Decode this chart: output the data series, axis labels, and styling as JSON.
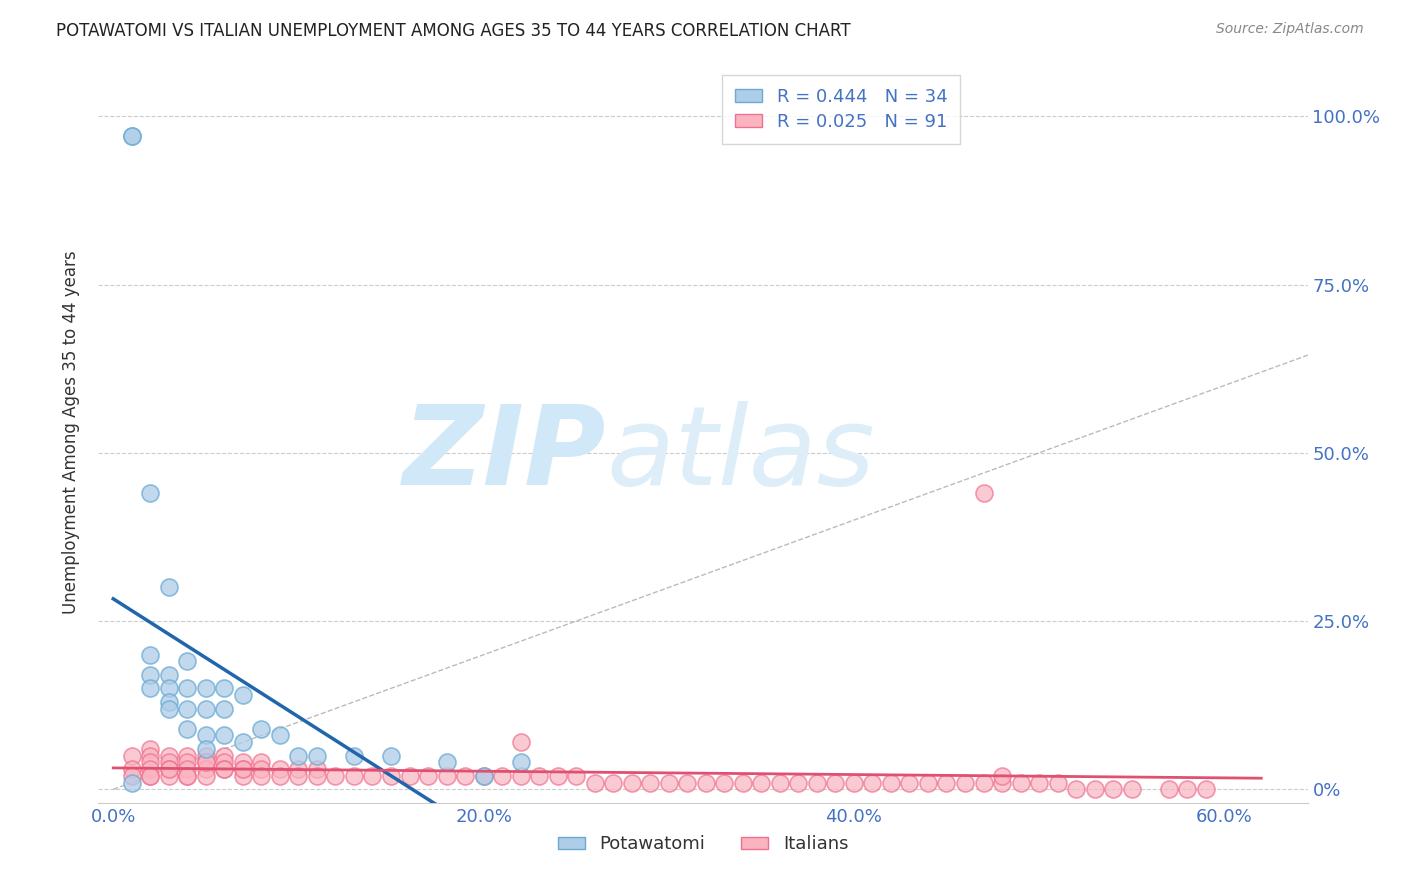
{
  "title": "POTAWATOMI VS ITALIAN UNEMPLOYMENT AMONG AGES 35 TO 44 YEARS CORRELATION CHART",
  "source": "Source: ZipAtlas.com",
  "xlabel_ticks": [
    "0.0%",
    "20.0%",
    "40.0%",
    "60.0%"
  ],
  "xlabel_tick_vals": [
    0.0,
    0.2,
    0.4,
    0.6
  ],
  "ylabel_ticks": [
    "100.0%",
    "75.0%",
    "50.0%",
    "25.0%",
    "0%"
  ],
  "ylabel_tick_vals": [
    1.0,
    0.75,
    0.5,
    0.25,
    0.0
  ],
  "ylabel_label": "Unemployment Among Ages 35 to 44 years",
  "xlim": [
    -0.008,
    0.645
  ],
  "ylim": [
    -0.02,
    1.08
  ],
  "potawatomi_R": 0.444,
  "potawatomi_N": 34,
  "italian_R": 0.025,
  "italian_N": 91,
  "potawatomi_color": "#aecde8",
  "italian_color": "#f9b4c0",
  "potawatomi_edge_color": "#6aaad4",
  "italian_edge_color": "#f07090",
  "potawatomi_line_color": "#2166ac",
  "italian_line_color": "#e05070",
  "ref_line_color": "#bbbbbb",
  "watermark_zip": "ZIP",
  "watermark_atlas": "atlas",
  "watermark_color": "#d0e8f8",
  "background_color": "#ffffff",
  "grid_color": "#cccccc",
  "title_color": "#222222",
  "axis_tick_color": "#4472c4",
  "ylabel_text_color": "#333333",
  "potawatomi_x": [
    0.01,
    0.01,
    0.02,
    0.02,
    0.02,
    0.02,
    0.03,
    0.03,
    0.03,
    0.03,
    0.03,
    0.04,
    0.04,
    0.04,
    0.04,
    0.05,
    0.05,
    0.05,
    0.05,
    0.06,
    0.06,
    0.06,
    0.07,
    0.07,
    0.08,
    0.09,
    0.1,
    0.11,
    0.13,
    0.15,
    0.18,
    0.2,
    0.22,
    0.01
  ],
  "potawatomi_y": [
    0.97,
    0.97,
    0.44,
    0.2,
    0.17,
    0.15,
    0.3,
    0.17,
    0.15,
    0.13,
    0.12,
    0.19,
    0.15,
    0.12,
    0.09,
    0.15,
    0.12,
    0.08,
    0.06,
    0.15,
    0.12,
    0.08,
    0.14,
    0.07,
    0.09,
    0.08,
    0.05,
    0.05,
    0.05,
    0.05,
    0.04,
    0.02,
    0.04,
    0.01
  ],
  "italian_x": [
    0.01,
    0.01,
    0.01,
    0.02,
    0.02,
    0.02,
    0.02,
    0.02,
    0.03,
    0.03,
    0.03,
    0.03,
    0.04,
    0.04,
    0.04,
    0.04,
    0.05,
    0.05,
    0.05,
    0.05,
    0.06,
    0.06,
    0.06,
    0.07,
    0.07,
    0.07,
    0.08,
    0.08,
    0.08,
    0.09,
    0.09,
    0.1,
    0.1,
    0.11,
    0.11,
    0.12,
    0.13,
    0.14,
    0.15,
    0.16,
    0.17,
    0.18,
    0.19,
    0.2,
    0.21,
    0.22,
    0.23,
    0.24,
    0.25,
    0.26,
    0.27,
    0.28,
    0.29,
    0.3,
    0.31,
    0.32,
    0.33,
    0.34,
    0.35,
    0.36,
    0.37,
    0.38,
    0.39,
    0.4,
    0.41,
    0.42,
    0.43,
    0.44,
    0.45,
    0.46,
    0.47,
    0.48,
    0.49,
    0.5,
    0.51,
    0.52,
    0.53,
    0.54,
    0.55,
    0.57,
    0.58,
    0.59,
    0.02,
    0.04,
    0.06,
    0.22,
    0.47,
    0.48,
    0.03,
    0.05,
    0.07
  ],
  "italian_y": [
    0.05,
    0.03,
    0.02,
    0.06,
    0.05,
    0.04,
    0.03,
    0.02,
    0.05,
    0.04,
    0.03,
    0.02,
    0.05,
    0.04,
    0.03,
    0.02,
    0.05,
    0.04,
    0.03,
    0.02,
    0.05,
    0.04,
    0.03,
    0.04,
    0.03,
    0.02,
    0.04,
    0.03,
    0.02,
    0.03,
    0.02,
    0.03,
    0.02,
    0.03,
    0.02,
    0.02,
    0.02,
    0.02,
    0.02,
    0.02,
    0.02,
    0.02,
    0.02,
    0.02,
    0.02,
    0.02,
    0.02,
    0.02,
    0.02,
    0.01,
    0.01,
    0.01,
    0.01,
    0.01,
    0.01,
    0.01,
    0.01,
    0.01,
    0.01,
    0.01,
    0.01,
    0.01,
    0.01,
    0.01,
    0.01,
    0.01,
    0.01,
    0.01,
    0.01,
    0.01,
    0.01,
    0.01,
    0.01,
    0.01,
    0.01,
    0.0,
    0.0,
    0.0,
    0.0,
    0.0,
    0.0,
    0.0,
    0.02,
    0.02,
    0.03,
    0.07,
    0.44,
    0.02,
    0.03,
    0.04,
    0.03
  ]
}
